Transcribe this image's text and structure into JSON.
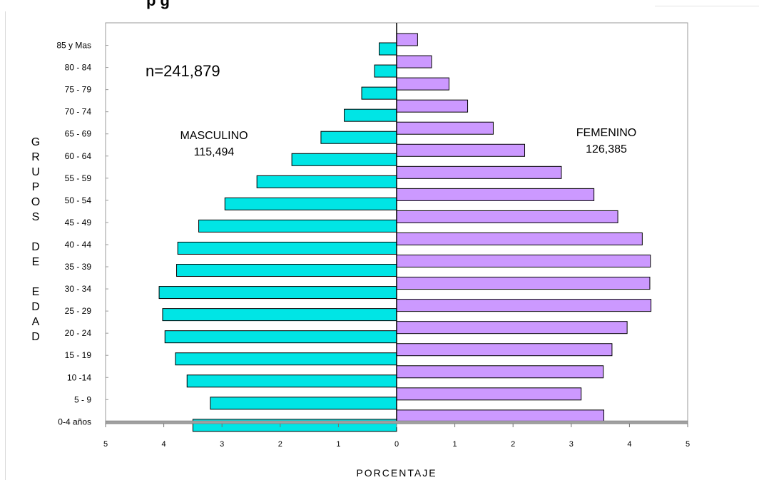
{
  "header": {
    "partial_title": "p                        g"
  },
  "chart_data": {
    "type": "bar",
    "orientation": "horizontal",
    "layout": "population-pyramid",
    "categories": [
      "0-4 años",
      "5 - 9",
      "10 -14",
      "15 - 19",
      "20 - 24",
      "25 - 29",
      "30 - 34",
      "35 - 39",
      "40 - 44",
      "45 - 49",
      "50 - 54",
      "55 - 59",
      "60 - 64",
      "65 - 69",
      "70 - 74",
      "75 - 79",
      "80 - 84",
      "85 y Mas"
    ],
    "series": [
      {
        "name": "MASCULINO",
        "color": "#00e5e5",
        "side": "left",
        "values": [
          3.5,
          3.2,
          3.6,
          3.8,
          3.98,
          4.02,
          4.08,
          3.78,
          3.76,
          3.4,
          2.95,
          2.4,
          1.8,
          1.3,
          0.9,
          0.6,
          0.38,
          0.3
        ]
      },
      {
        "name": "FEMENINO",
        "color": "#cc99ff",
        "side": "right",
        "values": [
          3.56,
          3.17,
          3.55,
          3.7,
          3.96,
          4.37,
          4.35,
          4.36,
          4.22,
          3.8,
          3.39,
          2.83,
          2.2,
          1.66,
          1.22,
          0.9,
          0.6,
          0.36
        ]
      }
    ],
    "xlim": [
      -5,
      5
    ],
    "xticks": [
      "5",
      "4",
      "3",
      "2",
      "1",
      "0",
      "1",
      "2",
      "3",
      "4",
      "5"
    ],
    "xlabel": "PORCENTAJE",
    "ylabel": "GRUPOS DE EDAD",
    "ylabel_letters": [
      "G",
      "R",
      "U",
      "P",
      "O",
      "S",
      "",
      "D",
      "E",
      "",
      "E",
      "D",
      "A",
      "D"
    ],
    "annotations": {
      "total": "n=241,879",
      "male_label": "MASCULINO",
      "male_count": "115,494",
      "female_label": "FEMENINO",
      "female_count": "126,385"
    },
    "grid": false
  }
}
